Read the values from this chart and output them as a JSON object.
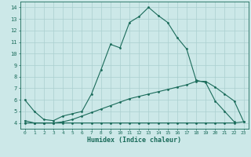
{
  "xlabel": "Humidex (Indice chaleur)",
  "background_color": "#cce8e8",
  "grid_color": "#aacfcf",
  "line_color": "#1a6b5a",
  "xlim": [
    -0.5,
    23.5
  ],
  "ylim": [
    3.5,
    14.5
  ],
  "xticks": [
    0,
    1,
    2,
    3,
    4,
    5,
    6,
    7,
    8,
    9,
    10,
    11,
    12,
    13,
    14,
    15,
    16,
    17,
    18,
    19,
    20,
    21,
    22,
    23
  ],
  "yticks": [
    4,
    5,
    6,
    7,
    8,
    9,
    10,
    11,
    12,
    13,
    14
  ],
  "curve1_x": [
    0,
    1,
    2,
    3,
    4,
    5,
    6,
    7,
    8,
    9,
    10,
    11,
    12,
    13,
    14,
    15,
    16,
    17,
    18,
    19,
    20,
    21,
    22
  ],
  "curve1_y": [
    6.0,
    5.0,
    4.3,
    4.2,
    4.6,
    4.8,
    5.0,
    6.5,
    8.6,
    10.8,
    10.5,
    12.7,
    13.2,
    14.0,
    13.3,
    12.7,
    11.4,
    10.4,
    7.7,
    7.5,
    5.9,
    5.0,
    4.1
  ],
  "curve2_x": [
    0,
    1,
    2,
    3,
    4,
    5,
    6,
    7,
    8,
    9,
    10,
    11,
    12,
    13,
    14,
    15,
    16,
    17,
    18,
    19,
    20,
    21,
    22,
    23
  ],
  "curve2_y": [
    4.2,
    4.0,
    4.0,
    4.0,
    4.1,
    4.3,
    4.6,
    4.9,
    5.2,
    5.5,
    5.8,
    6.1,
    6.3,
    6.5,
    6.7,
    6.9,
    7.1,
    7.3,
    7.6,
    7.6,
    7.1,
    6.5,
    5.9,
    4.1
  ],
  "curve3_x": [
    0,
    1,
    2,
    3,
    4,
    5,
    6,
    7,
    8,
    9,
    10,
    11,
    12,
    13,
    14,
    15,
    16,
    17,
    18,
    19,
    20,
    21,
    22,
    23
  ],
  "curve3_y": [
    4.0,
    4.0,
    4.0,
    4.0,
    4.0,
    4.0,
    4.0,
    4.0,
    4.0,
    4.0,
    4.0,
    4.0,
    4.0,
    4.0,
    4.0,
    4.0,
    4.0,
    4.0,
    4.0,
    4.0,
    4.0,
    4.0,
    4.0,
    4.1
  ]
}
